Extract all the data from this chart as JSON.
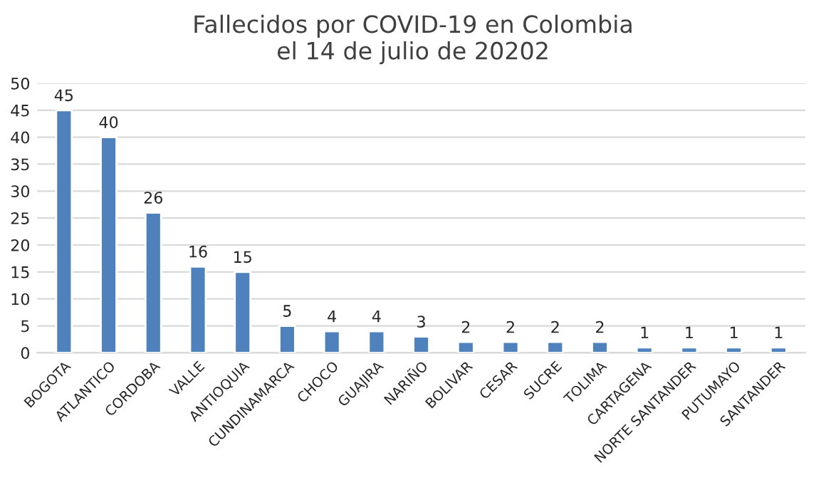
{
  "chart_data": {
    "type": "bar",
    "title": "Fallecidos por COVID-19 en Colombia\nel 14 de julio de 20202",
    "categories": [
      "BOGOTA",
      "ATLANTICO",
      "CORDOBA",
      "VALLE",
      "ANTIOQUIA",
      "CUNDINAMARCA",
      "CHOCO",
      "GUAJIRA",
      "NARIÑO",
      "BOLIVAR",
      "CESAR",
      "SUCRE",
      "TOLIMA",
      "CARTAGENA",
      "NORTE SANTANDER",
      "PUTUMAYO",
      "SANTANDER"
    ],
    "values": [
      45,
      40,
      26,
      16,
      15,
      5,
      4,
      4,
      3,
      2,
      2,
      2,
      2,
      1,
      1,
      1,
      1
    ],
    "color": "#4f81bd",
    "ylim": [
      0,
      50
    ],
    "yticks": [
      0,
      5,
      10,
      15,
      20,
      25,
      30,
      35,
      40,
      45,
      50
    ],
    "grid": "y",
    "data_labels": true
  }
}
